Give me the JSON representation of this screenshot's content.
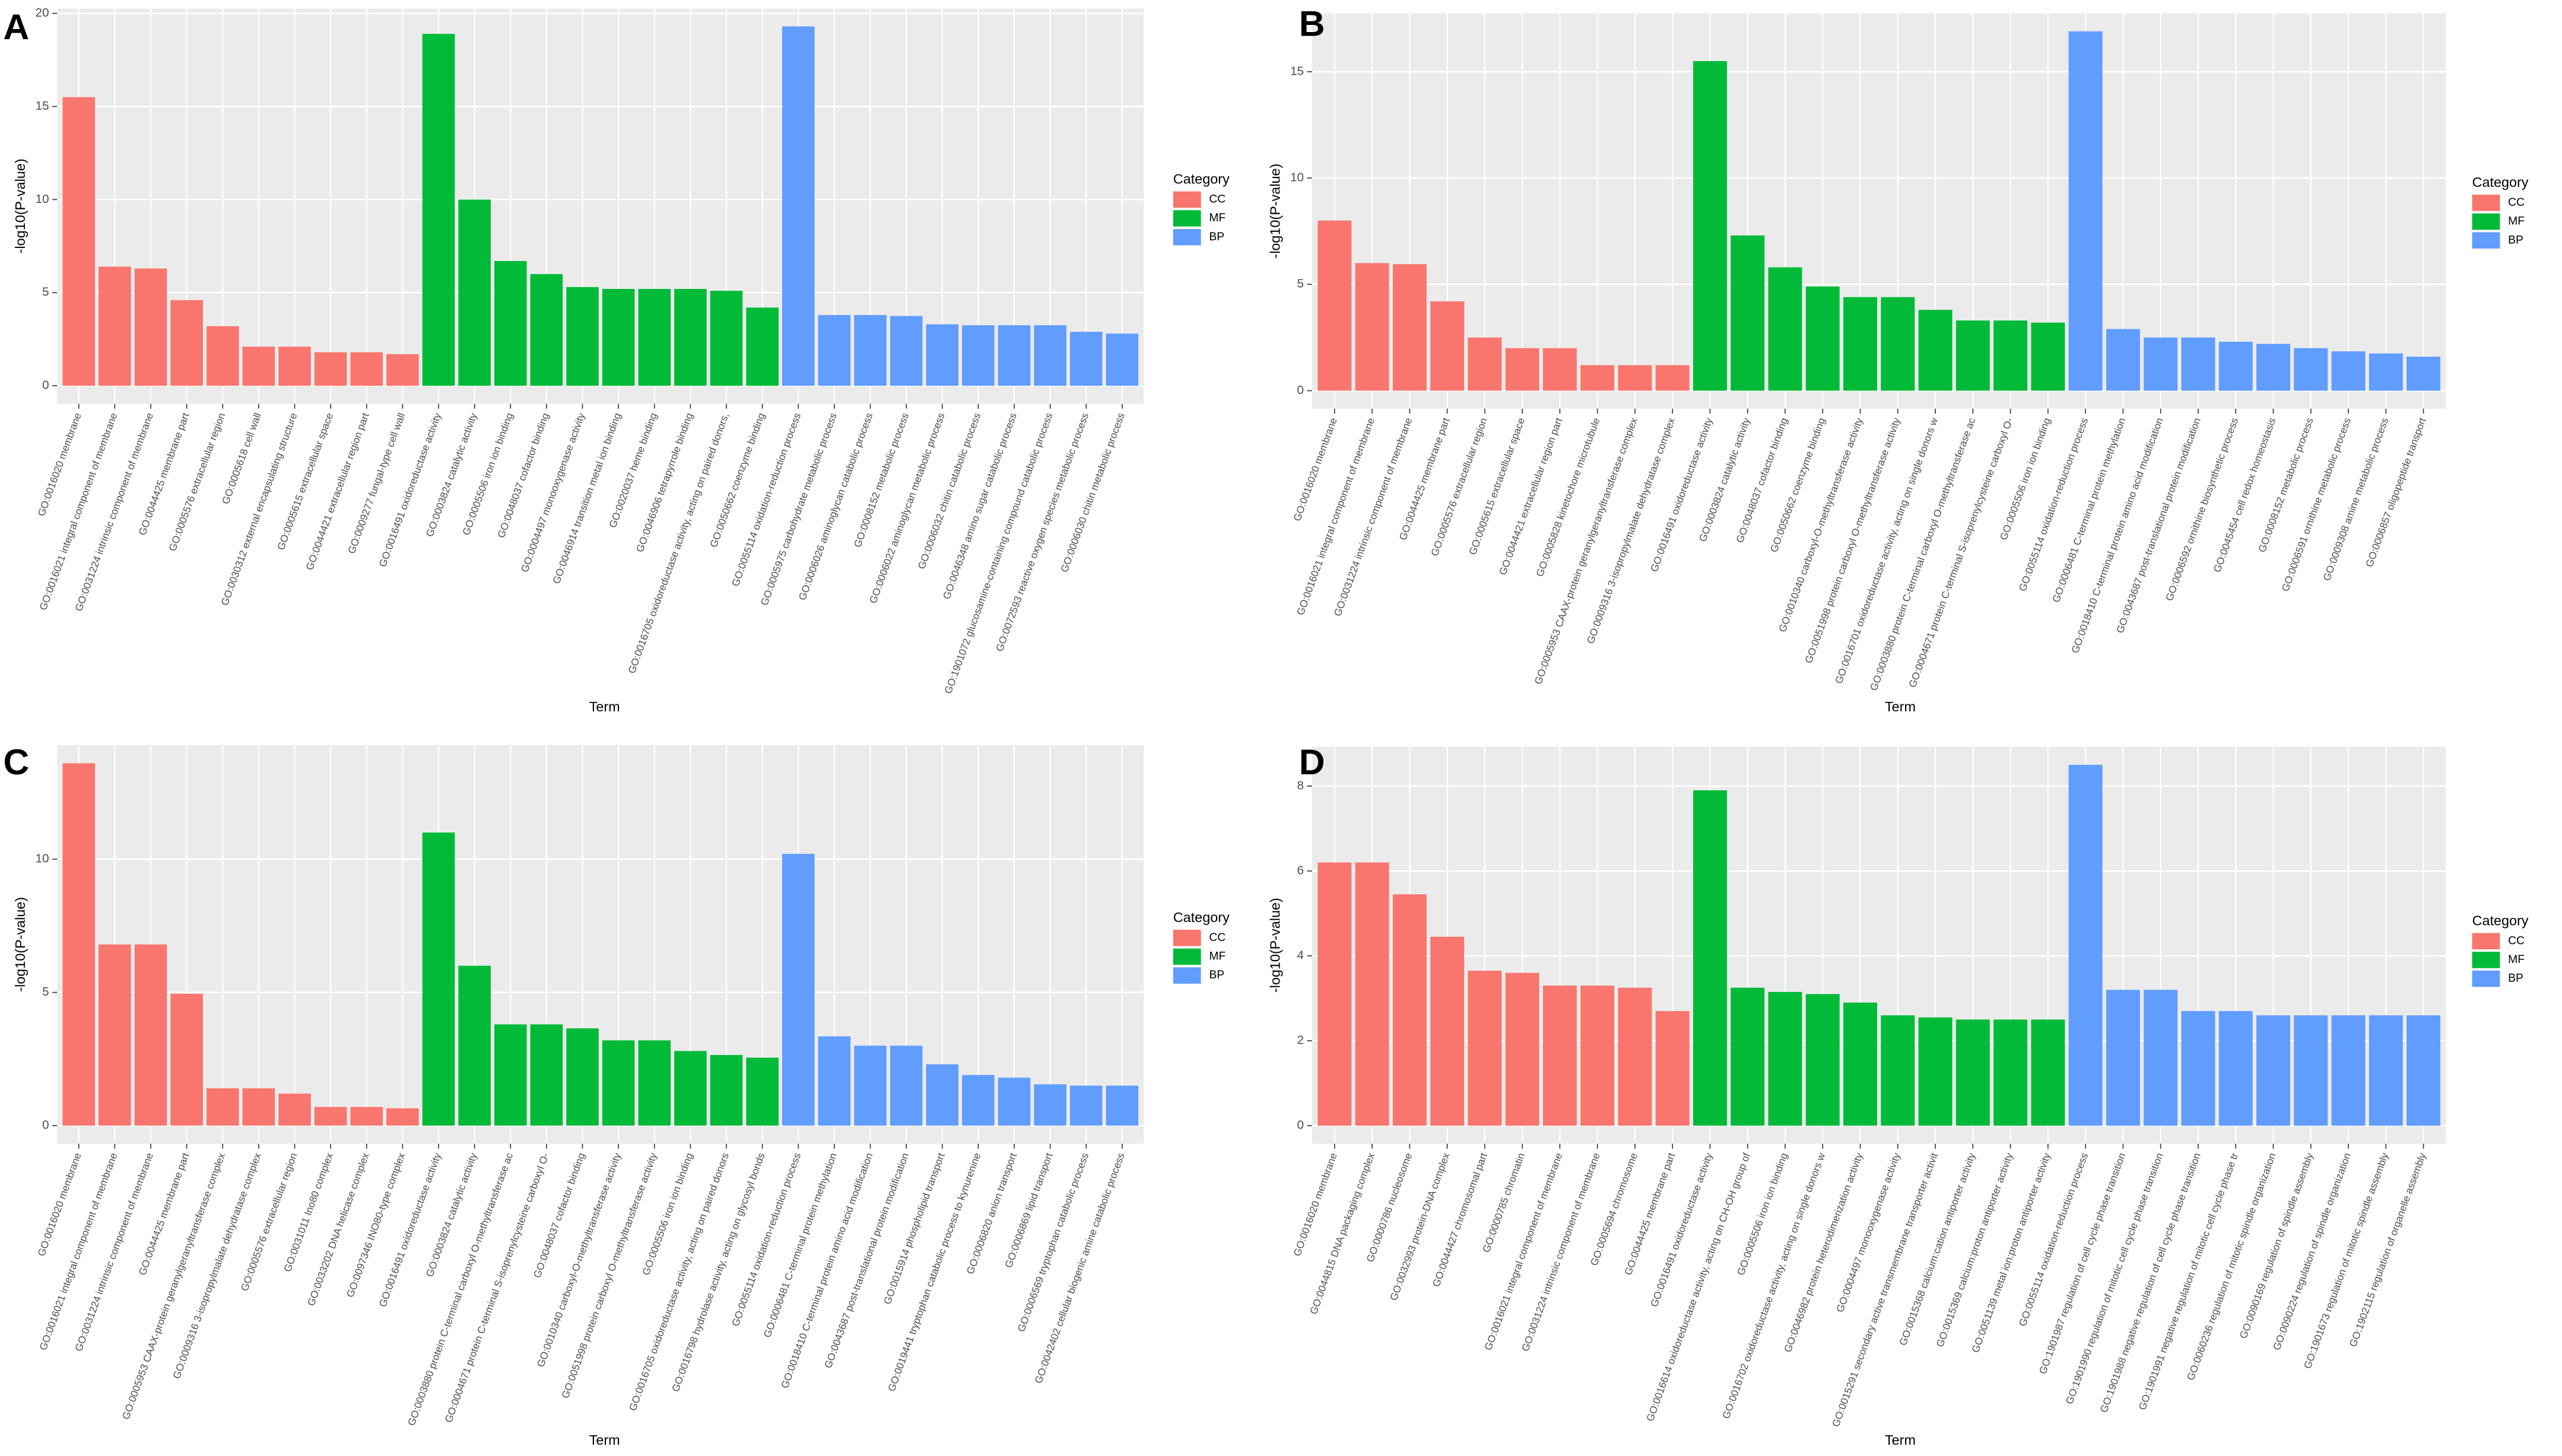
{
  "chart_data": [
    {
      "type": "bar",
      "label": "A",
      "xlabel": "Term",
      "ylabel": "-log10(P-value)",
      "legend_title": "Category",
      "ylim": [
        -0.965,
        20.265
      ],
      "yticks": [
        0,
        5,
        10,
        15,
        20
      ],
      "grid": true,
      "categories": [
        "GO:0016020 membrane",
        "GO:0016021 integral component of membrane",
        "GO:0031224 intrinsic component of membrane",
        "GO:0044425 membrane part",
        "GO:0005576 extracellular region",
        "GO:0005618 cell wall",
        "GO:0030312 external encapsulating structure",
        "GO:0005615 extracellular space",
        "GO:0044421 extracellular region part",
        "GO:0009277 fungal-type cell wall",
        "GO:0016491 oxidoreductase activity",
        "GO:0003824 catalytic activity",
        "GO:0005506 iron ion binding",
        "GO:0048037 cofactor binding",
        "GO:0004497 monooxygenase activity",
        "GO:0046914 transition metal ion binding",
        "GO:0020037 heme binding",
        "GO:0046906 tetrapyrrole binding",
        "GO:0016705 oxidoreductase activity, acting on paired donors,",
        "GO:0050662 coenzyme binding",
        "GO:0055114 oxidation-reduction process",
        "GO:0005975 carbohydrate metabolic process",
        "GO:0006026 aminoglycan catabolic process",
        "GO:0008152 metabolic process",
        "GO:0006022 aminoglycan metabolic process",
        "GO:0006032 chitin catabolic process",
        "GO:0046348 amino sugar catabolic process",
        "GO:1901072 glucosamine-containing compound catabolic process",
        "GO:0072593 reactive oxygen species metabolic process",
        "GO:0006030 chitin metabolic process"
      ],
      "series": [
        {
          "name": "CC",
          "color": "#f8766d",
          "values": [
            15.5,
            6.4,
            6.3,
            4.6,
            3.2,
            2.1,
            2.1,
            1.8,
            1.8,
            1.7,
            null,
            null,
            null,
            null,
            null,
            null,
            null,
            null,
            null,
            null,
            null,
            null,
            null,
            null,
            null,
            null,
            null,
            null,
            null,
            null
          ]
        },
        {
          "name": "MF",
          "color": "#00ba38",
          "values": [
            null,
            null,
            null,
            null,
            null,
            null,
            null,
            null,
            null,
            null,
            18.9,
            10.0,
            6.7,
            6.0,
            5.3,
            5.2,
            5.2,
            5.2,
            5.1,
            4.2,
            null,
            null,
            null,
            null,
            null,
            null,
            null,
            null,
            null,
            null
          ]
        },
        {
          "name": "BP",
          "color": "#619cff",
          "values": [
            null,
            null,
            null,
            null,
            null,
            null,
            null,
            null,
            null,
            null,
            null,
            null,
            null,
            null,
            null,
            null,
            null,
            null,
            null,
            null,
            19.3,
            3.8,
            3.8,
            3.75,
            3.3,
            3.25,
            3.25,
            3.25,
            2.9,
            2.8
          ]
        }
      ]
    },
    {
      "type": "bar",
      "label": "B",
      "xlabel": "Term",
      "ylabel": "-log10(P-value)",
      "legend_title": "Category",
      "ylim": [
        -0.845,
        17.745
      ],
      "yticks": [
        0,
        5,
        10,
        15
      ],
      "grid": true,
      "categories": [
        "GO:0016020 membrane",
        "GO:0016021 integral component of membrane",
        "GO:0031224 intrinsic component of membrane",
        "GO:0044425 membrane part",
        "GO:0005576 extracellular region",
        "GO:0005615 extracellular space",
        "GO:0044421 extracellular region part",
        "GO:0005828 kinetochore microtubule",
        "GO:0005953 CAAX-protein geranylgeranyltransferase complex",
        "GO:0009316 3-isopropylmalate dehydratase complex",
        "GO:0016491 oxidoreductase activity",
        "GO:0003824 catalytic activity",
        "GO:0048037 cofactor binding",
        "GO:0050662 coenzyme binding",
        "GO:0010340 carboxyl-O-methyltransferase activity",
        "GO:0051998 protein carboxyl O-methyltransferase activity",
        "GO:0016701 oxidoreductase activity, acting on single donors w",
        "GO:0003880 protein C-terminal carboxyl O-methyltransferase ac",
        "GO:0004671 protein C-terminal S-isoprenylcysteine carboxyl O-",
        "GO:0005506 iron ion binding",
        "GO:0055114 oxidation-reduction process",
        "GO:0006481 C-terminal protein methylation",
        "GO:0018410 C-terminal protein amino acid modification",
        "GO:0043687 post-translational protein modification",
        "GO:0006592 ornithine biosynthetic process",
        "GO:0045454 cell redox homeostasis",
        "GO:0008152 metabolic process",
        "GO:0006591 ornithine metabolic process",
        "GO:0009308 amine metabolic process",
        "GO:0006857 oligopeptide transport"
      ],
      "series": [
        {
          "name": "CC",
          "color": "#f8766d",
          "values": [
            8.0,
            6.0,
            5.95,
            4.2,
            2.5,
            2.0,
            2.0,
            1.2,
            1.2,
            1.2,
            null,
            null,
            null,
            null,
            null,
            null,
            null,
            null,
            null,
            null,
            null,
            null,
            null,
            null,
            null,
            null,
            null,
            null,
            null,
            null
          ]
        },
        {
          "name": "MF",
          "color": "#00ba38",
          "values": [
            null,
            null,
            null,
            null,
            null,
            null,
            null,
            null,
            null,
            null,
            15.5,
            7.3,
            5.8,
            4.9,
            4.4,
            4.4,
            3.8,
            3.3,
            3.3,
            3.2,
            null,
            null,
            null,
            null,
            null,
            null,
            null,
            null,
            null,
            null
          ]
        },
        {
          "name": "BP",
          "color": "#619cff",
          "values": [
            null,
            null,
            null,
            null,
            null,
            null,
            null,
            null,
            null,
            null,
            null,
            null,
            null,
            null,
            null,
            null,
            null,
            null,
            null,
            null,
            16.9,
            2.9,
            2.5,
            2.5,
            2.3,
            2.2,
            2.0,
            1.85,
            1.75,
            1.6
          ]
        }
      ]
    },
    {
      "type": "bar",
      "label": "C",
      "xlabel": "Term",
      "ylabel": "-log10(P-value)",
      "legend_title": "Category",
      "ylim": [
        -0.68,
        14.28
      ],
      "yticks": [
        0,
        5,
        10
      ],
      "grid": true,
      "categories": [
        "GO:0016020 membrane",
        "GO:0016021 integral component of membrane",
        "GO:0031224 intrinsic component of membrane",
        "GO:0044425 membrane part",
        "GO:0005953 CAAX-protein geranylgeranyltransferase complex",
        "GO:0009316 3-isopropylmalate dehydratase complex",
        "GO:0005576 extracellular region",
        "GO:0031011 Ino80 complex",
        "GO:0033202 DNA helicase complex",
        "GO:0097346 INO80-type complex",
        "GO:0016491 oxidoreductase activity",
        "GO:0003824 catalytic activity",
        "GO:0003880 protein C-terminal carboxyl O-methyltransferase ac",
        "GO:0004671 protein C-terminal S-isoprenylcysteine carboxyl O-",
        "GO:0048037 cofactor binding",
        "GO:0010340 carboxyl-O-methyltransferase activity",
        "GO:0051998 protein carboxyl O-methyltransferase activity",
        "GO:0005506 iron ion binding",
        "GO:0016705 oxidoreductase activity, acting on paired donors",
        "GO:0016798 hydrolase activity, acting on glycosyl bonds",
        "GO:0055114 oxidation-reduction process",
        "GO:0006481 C-terminal protein methylation",
        "GO:0018410 C-terminal protein amino acid modification",
        "GO:0043687 post-translational protein modification",
        "GO:0015914 phospholipid transport",
        "GO:0019441 tryptophan catabolic process to kynurenine",
        "GO:0006820 anion transport",
        "GO:0006869 lipid transport",
        "GO:0006569 tryptophan catabolic process",
        "GO:0042402 cellular biogenic amine catabolic process"
      ],
      "series": [
        {
          "name": "CC",
          "color": "#f8766d",
          "values": [
            13.6,
            6.8,
            6.8,
            4.95,
            1.4,
            1.4,
            1.2,
            0.7,
            0.7,
            0.65,
            null,
            null,
            null,
            null,
            null,
            null,
            null,
            null,
            null,
            null,
            null,
            null,
            null,
            null,
            null,
            null,
            null,
            null,
            null,
            null
          ]
        },
        {
          "name": "MF",
          "color": "#00ba38",
          "values": [
            null,
            null,
            null,
            null,
            null,
            null,
            null,
            null,
            null,
            null,
            11.0,
            6.0,
            3.8,
            3.8,
            3.65,
            3.2,
            3.2,
            2.8,
            2.65,
            2.55,
            null,
            null,
            null,
            null,
            null,
            null,
            null,
            null,
            null,
            null
          ]
        },
        {
          "name": "BP",
          "color": "#619cff",
          "values": [
            null,
            null,
            null,
            null,
            null,
            null,
            null,
            null,
            null,
            null,
            null,
            null,
            null,
            null,
            null,
            null,
            null,
            null,
            null,
            null,
            10.2,
            3.35,
            3.0,
            3.0,
            2.3,
            1.9,
            1.8,
            1.55,
            1.5,
            1.5
          ]
        }
      ]
    },
    {
      "type": "bar",
      "label": "D",
      "xlabel": "Term",
      "ylabel": "-log10(P-value)",
      "legend_title": "Category",
      "ylim": [
        -0.425,
        8.925
      ],
      "yticks": [
        0,
        2,
        4,
        6,
        8
      ],
      "grid": true,
      "categories": [
        "GO:0016020 membrane",
        "GO:0044815 DNA packaging complex",
        "GO:0000786 nucleosome",
        "GO:0032993 protein-DNA complex",
        "GO:0044427 chromosomal part",
        "GO:0000785 chromatin",
        "GO:0016021 integral component of membrane",
        "GO:0031224 intrinsic component of membrane",
        "GO:0005694 chromosome",
        "GO:0044425 membrane part",
        "GO:0016491 oxidoreductase activity",
        "GO:0016614 oxidoreductase activity, acting on CH-OH group of",
        "GO:0005506 iron ion binding",
        "GO:0016702 oxidoreductase activity, acting on single donors w",
        "GO:0046982 protein heterodimerization activity",
        "GO:0004497 monooxygenase activity",
        "GO:0015291 secondary active transmembrane transporter activit",
        "GO:0015368 calcium:cation antiporter activity",
        "GO:0015369 calcium:proton antiporter activity",
        "GO:0051139 metal ion:proton antiporter activity",
        "GO:0055114 oxidation-reduction process",
        "GO:1901987 regulation of cell cycle phase transition",
        "GO:1901990 regulation of mitotic cell cycle phase transition",
        "GO:1901988 negative regulation of cell cycle phase transition",
        "GO:1901991 negative regulation of mitotic cell cycle phase tr",
        "GO:0060236 regulation of mitotic spindle organization",
        "GO:0090169 regulation of spindle assembly",
        "GO:0090224 regulation of spindle organization",
        "GO:1901673 regulation of mitotic spindle assembly",
        "GO:1902115 regulation of organelle assembly"
      ],
      "series": [
        {
          "name": "CC",
          "color": "#f8766d",
          "values": [
            6.2,
            6.2,
            5.45,
            4.45,
            3.65,
            3.6,
            3.3,
            3.3,
            3.25,
            2.7,
            null,
            null,
            null,
            null,
            null,
            null,
            null,
            null,
            null,
            null,
            null,
            null,
            null,
            null,
            null,
            null,
            null,
            null,
            null,
            null
          ]
        },
        {
          "name": "MF",
          "color": "#00ba38",
          "values": [
            null,
            null,
            null,
            null,
            null,
            null,
            null,
            null,
            null,
            null,
            7.9,
            3.25,
            3.15,
            3.1,
            2.9,
            2.6,
            2.55,
            2.5,
            2.5,
            2.5,
            null,
            null,
            null,
            null,
            null,
            null,
            null,
            null,
            null,
            null
          ]
        },
        {
          "name": "BP",
          "color": "#619cff",
          "values": [
            null,
            null,
            null,
            null,
            null,
            null,
            null,
            null,
            null,
            null,
            null,
            null,
            null,
            null,
            null,
            null,
            null,
            null,
            null,
            null,
            8.5,
            3.2,
            3.2,
            2.7,
            2.7,
            2.6,
            2.6,
            2.6,
            2.6,
            2.6
          ]
        }
      ]
    }
  ]
}
